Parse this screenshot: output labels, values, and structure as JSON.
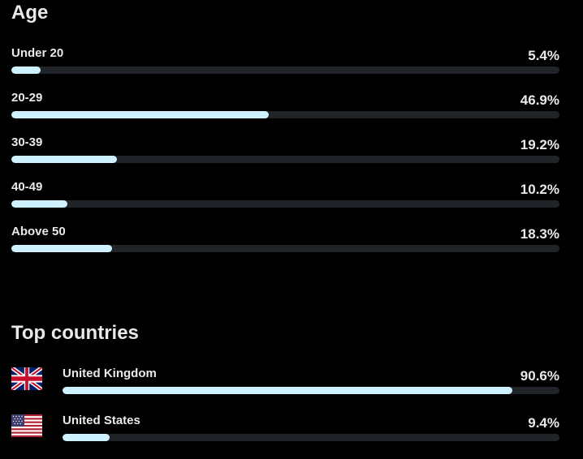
{
  "age": {
    "title": "Age",
    "rows": [
      {
        "label": "Under 20",
        "percent_text": "5.4%",
        "value": 5.4
      },
      {
        "label": "20-29",
        "percent_text": "46.9%",
        "value": 46.9
      },
      {
        "label": "30-39",
        "percent_text": "19.2%",
        "value": 19.2
      },
      {
        "label": "40-49",
        "percent_text": "10.2%",
        "value": 10.2
      },
      {
        "label": "Above 50",
        "percent_text": "18.3%",
        "value": 18.3
      }
    ]
  },
  "countries": {
    "title": "Top countries",
    "rows": [
      {
        "label": "United Kingdom",
        "percent_text": "90.6%",
        "value": 90.6,
        "flag_icon": "uk-flag-icon"
      },
      {
        "label": "United States",
        "percent_text": "9.4%",
        "value": 9.4,
        "flag_icon": "us-flag-icon"
      }
    ]
  },
  "colors": {
    "background": "#000000",
    "text": "#e7e9ea",
    "bar_track": "#202327",
    "bar_fill": "#cdf1fe"
  }
}
